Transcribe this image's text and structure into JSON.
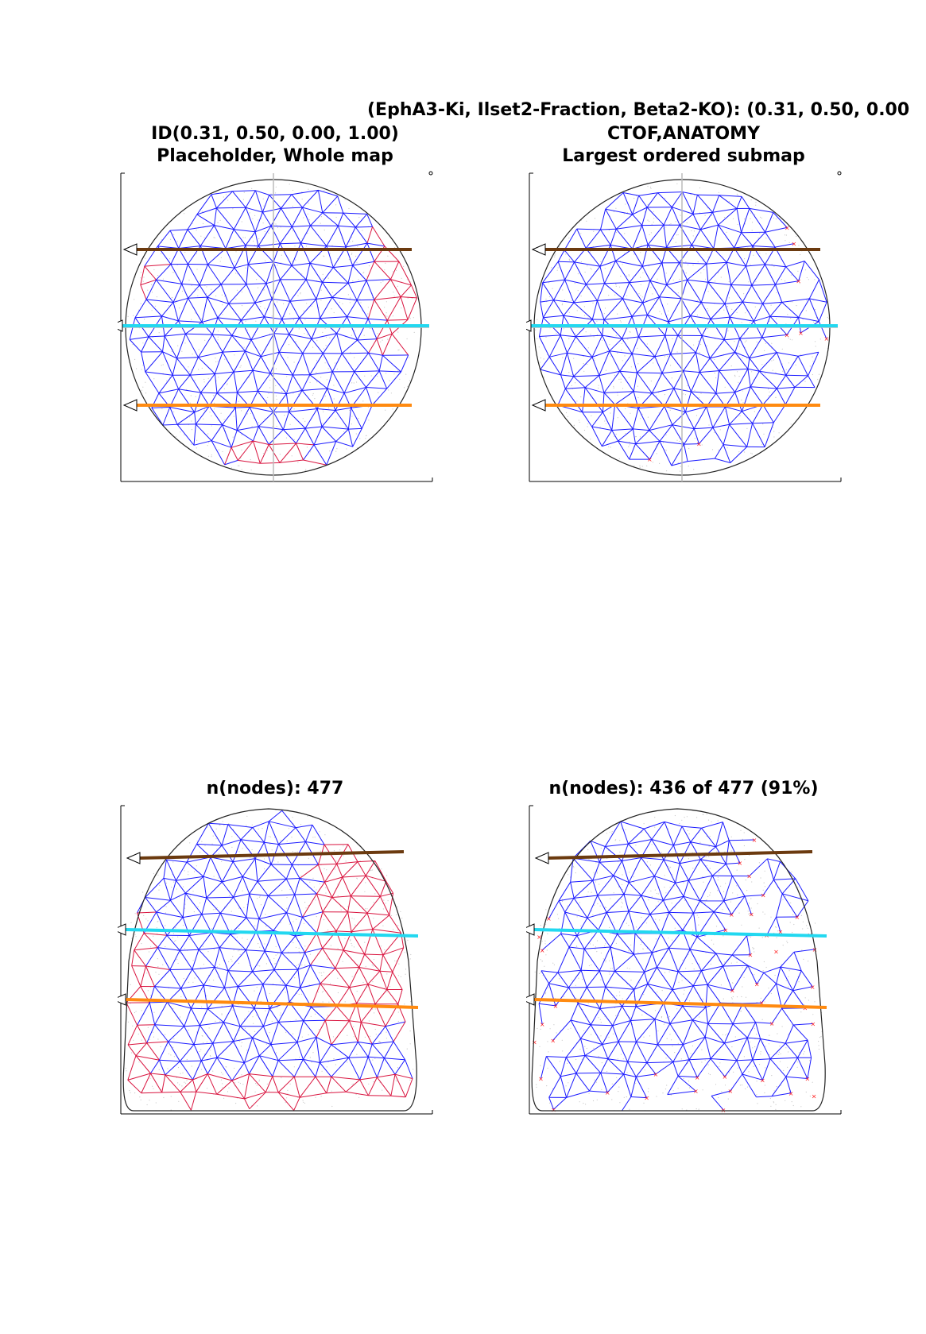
{
  "figure": {
    "suptitle": "(EphA3-Ki, Ilset2-Fraction, Beta2-KO): (0.31, 0.50, 0.00"
  },
  "panels": [
    {
      "title_line1": "ID(0.31, 0.50, 0.00, 1.00)",
      "title_line2": "Placeholder, Whole map",
      "shape": "circle",
      "submap": false
    },
    {
      "title_line1": "CTOF,ANATOMY",
      "title_line2": "Largest ordered submap",
      "shape": "circle",
      "submap": true
    },
    {
      "title_line1": "n(nodes): 477",
      "shape": "dome",
      "submap": false
    },
    {
      "title_line1": "n(nodes): 436 of 477 (91%)",
      "shape": "dome",
      "submap": true
    }
  ],
  "colors": {
    "mesh_ordered": "#1a1aff",
    "mesh_disordered": "#d9143f",
    "excluded_marker": "#ff2020",
    "line_top": "#6b3a0f",
    "line_mid": "#22d8f0",
    "line_bottom": "#ff8a10",
    "outline": "#222222",
    "axis_cross": "#bbbbbb",
    "scatter": "#c8c8c8"
  }
}
